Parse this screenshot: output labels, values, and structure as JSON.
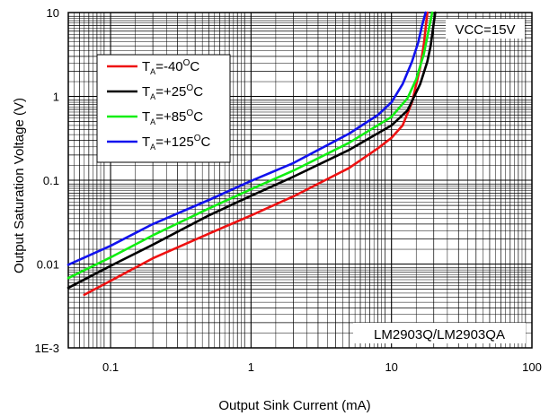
{
  "chart_data": {
    "type": "line",
    "title": "",
    "xlabel": "Output Sink Current (mA)",
    "ylabel": "Output Saturation Voltage (V)",
    "x_scale": "log",
    "y_scale": "log",
    "xlim": [
      0.05,
      100
    ],
    "ylim": [
      0.001,
      10
    ],
    "x_tick_labels": [
      {
        "value": 0.1,
        "label": "0.1"
      },
      {
        "value": 1,
        "label": "1"
      },
      {
        "value": 10,
        "label": "10"
      },
      {
        "value": 100,
        "label": "100"
      }
    ],
    "y_tick_labels": [
      {
        "value": 0.001,
        "label": "1E-3"
      },
      {
        "value": 0.01,
        "label": "0.01"
      },
      {
        "value": 0.1,
        "label": "0.1"
      },
      {
        "value": 1,
        "label": "1"
      },
      {
        "value": 10,
        "label": "10"
      }
    ],
    "grid": true,
    "legend_position": "upper-left",
    "annotations": {
      "supply": "VCC=15V",
      "part": "LM2903Q/LM2903QA"
    },
    "series": [
      {
        "name": "TA=-40°C",
        "legend": {
          "main": "T",
          "sub": "A",
          "pre": "=-40",
          "sup": "O",
          "post": "C"
        },
        "color": "#ee1111",
        "x": [
          0.065,
          0.1,
          0.2,
          0.5,
          1,
          2,
          5,
          8,
          10,
          12,
          14,
          16,
          17,
          18
        ],
        "y": [
          0.0043,
          0.0063,
          0.0117,
          0.023,
          0.038,
          0.064,
          0.14,
          0.24,
          0.32,
          0.45,
          0.85,
          2.2,
          4.2,
          10
        ]
      },
      {
        "name": "TA=+25°C",
        "legend": {
          "main": "T",
          "sub": "A",
          "pre": "=+25",
          "sup": "O",
          "post": "C"
        },
        "color": "#000000",
        "x": [
          0.05,
          0.1,
          0.2,
          0.5,
          1,
          2,
          5,
          10,
          13,
          16,
          18,
          19,
          20,
          20.5
        ],
        "y": [
          0.0052,
          0.0095,
          0.017,
          0.038,
          0.065,
          0.11,
          0.23,
          0.45,
          0.68,
          1.4,
          2.6,
          4,
          7.5,
          10
        ]
      },
      {
        "name": "TA=+85°C",
        "legend": {
          "main": "T",
          "sub": "A",
          "pre": "=+85",
          "sup": "O",
          "post": "C"
        },
        "color": "#11ee11",
        "x": [
          0.05,
          0.1,
          0.2,
          0.5,
          1,
          2,
          5,
          10,
          13,
          15,
          17,
          18.5,
          19.5
        ],
        "y": [
          0.0068,
          0.012,
          0.022,
          0.046,
          0.078,
          0.13,
          0.28,
          0.57,
          0.95,
          1.6,
          3.2,
          6.5,
          10
        ]
      },
      {
        "name": "TA=+125°C",
        "legend": {
          "main": "T",
          "sub": "A",
          "pre": "=+125",
          "sup": "O",
          "post": "C"
        },
        "color": "#1111ee",
        "x": [
          0.05,
          0.1,
          0.2,
          0.5,
          1,
          2,
          5,
          8,
          10,
          12,
          14,
          15.5,
          16.5,
          17.5
        ],
        "y": [
          0.0098,
          0.0165,
          0.03,
          0.058,
          0.098,
          0.16,
          0.36,
          0.6,
          0.85,
          1.4,
          2.6,
          4.4,
          7,
          10
        ]
      }
    ]
  }
}
